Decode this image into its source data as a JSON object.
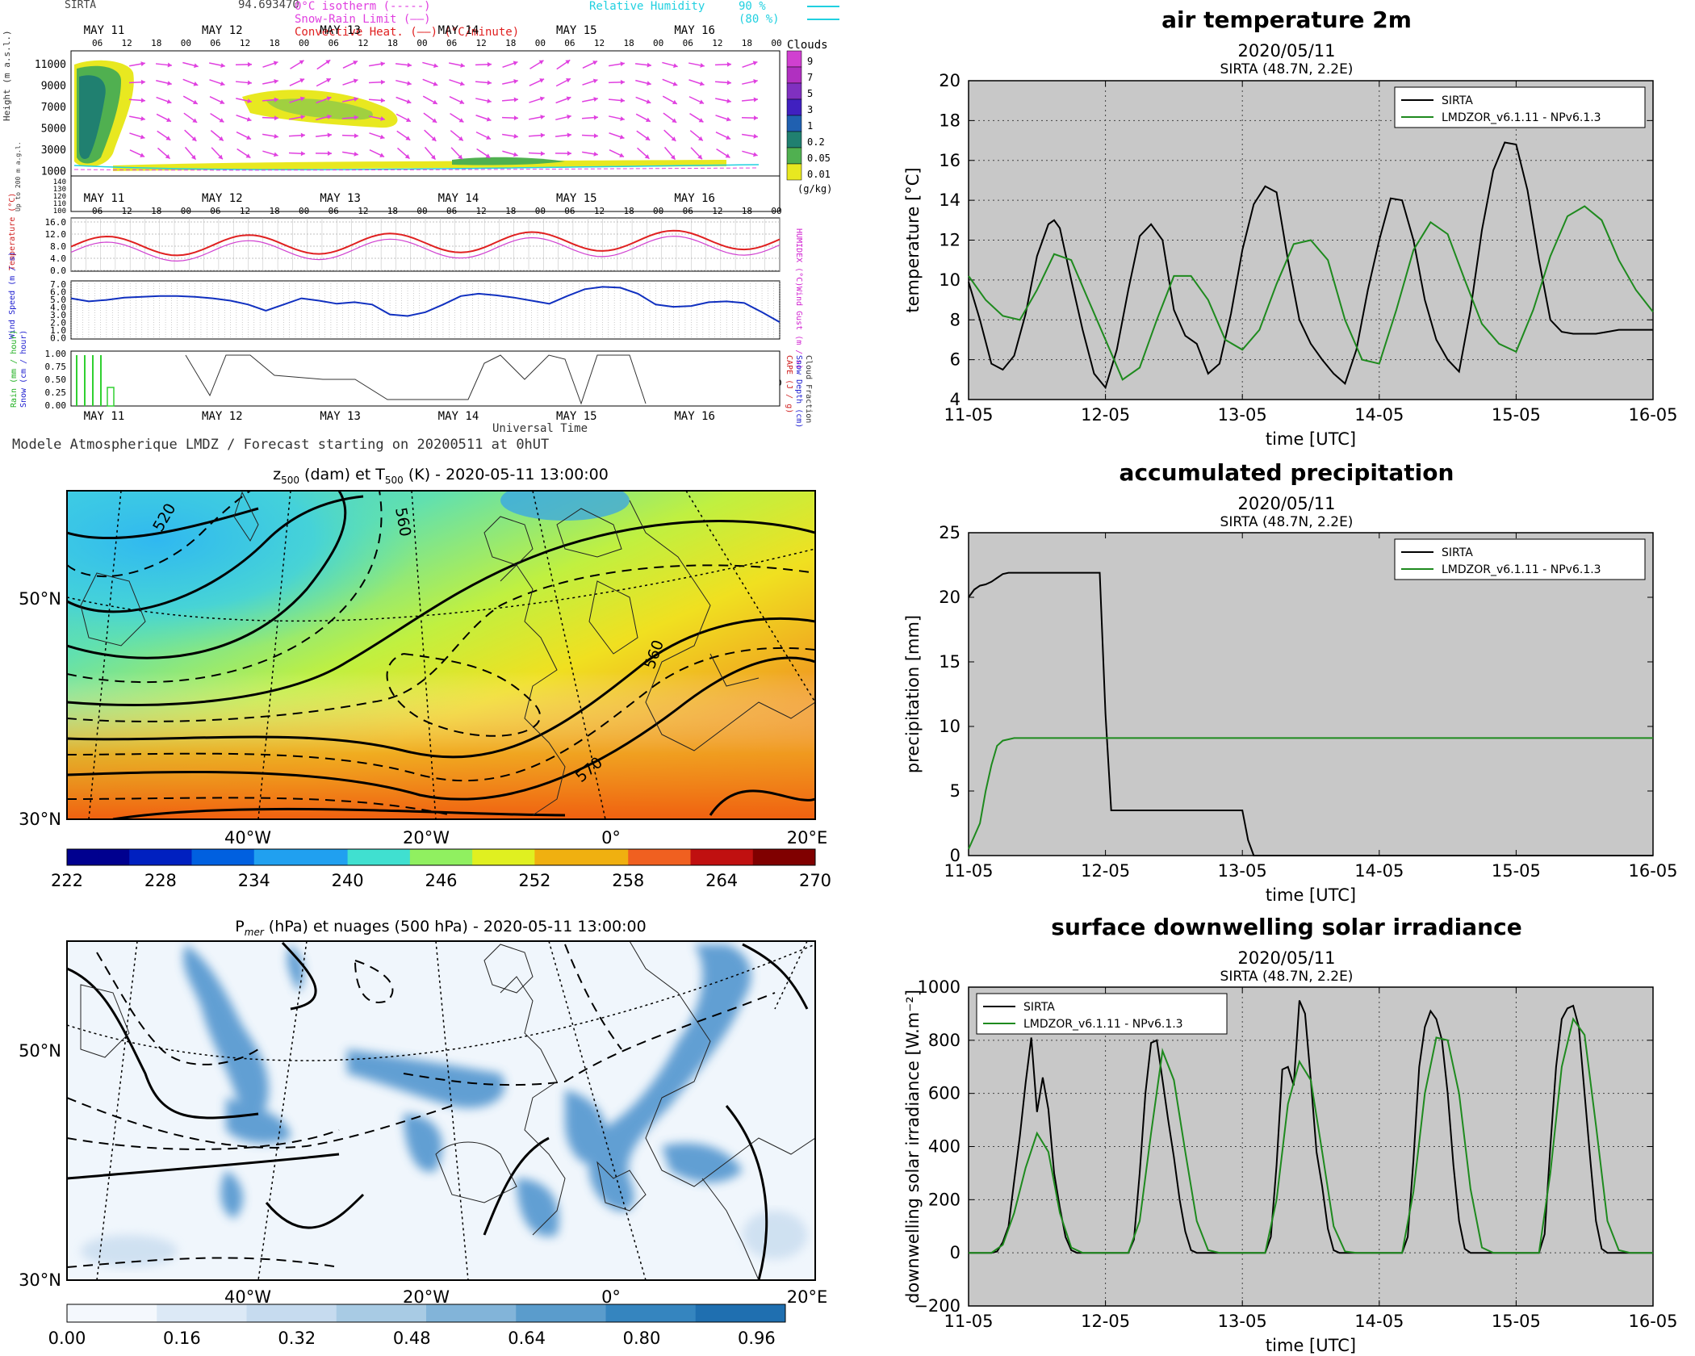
{
  "meteogram": {
    "station": "SIRTA",
    "value_text": "94.693470",
    "legend_left": [
      {
        "label": "0°C isotherm",
        "sym": "(-----)",
        "color": "#e040e0"
      },
      {
        "label": "Snow-Rain Limit",
        "sym": "(——)",
        "color": "#e040e0"
      },
      {
        "label": "Convective Heat.",
        "sym": "(——) (°C/minute)",
        "color": "#e02020"
      }
    ],
    "legend_right": [
      {
        "label": "Relative Humidity",
        "value": "90 %",
        "color": "#20d0e0"
      },
      {
        "label": "",
        "value": "(80 %)",
        "color": "#20d0e0"
      }
    ],
    "days": [
      "MAY 11",
      "MAY 12",
      "MAY 13",
      "MAY 14",
      "MAY 15",
      "MAY 16"
    ],
    "hours": [
      "06",
      "12",
      "18",
      "00"
    ],
    "height_axis": [
      "11000",
      "9000",
      "7000",
      "5000",
      "3000",
      "1000"
    ],
    "low_axis": [
      "140",
      "130",
      "120",
      "110",
      "100"
    ],
    "height_label": "Height (m a.s.l.)",
    "low_label": "Up to 200 m a.g.l.",
    "cloud_title": "Clouds",
    "cloud_levels": [
      "9",
      "7",
      "5",
      "3",
      "1",
      "0.2",
      "0.05",
      "0.01"
    ],
    "cloud_unit": "(g/kg)",
    "cloud_colors": [
      "#d040d0",
      "#b030c0",
      "#8030c0",
      "#4020c0",
      "#2060b0",
      "#208070",
      "#50b050",
      "#e8e820"
    ],
    "temp_axis": [
      "16.0",
      "12.0",
      "8.0",
      "4.0",
      "0.0"
    ],
    "temp_label_left": "Temperature (°C)",
    "temp_label_right": "HUMIDEX (°C)",
    "wind_axis": [
      "7.0",
      "6.0",
      "5.0",
      "4.0",
      "3.0",
      "2.0",
      "1.0",
      "0.0"
    ],
    "wind_label_left": "Wind Speed (m / s)",
    "wind_label_right": "Wind Gust (m / s)",
    "precip_axis": [
      "1.00",
      "0.75",
      "0.50",
      "0.25",
      "0.00"
    ],
    "precip_label_left": [
      "Rain (mm / hour)",
      "Snow (cm / hour)"
    ],
    "precip_label_right": [
      "CAPE (J / g)",
      "Snow Depth (cm)",
      "Cloud Fraction"
    ],
    "xlabel": "Universal Time",
    "footer": "Modele Atmospherique LMDZ / Forecast starting on 20200511 at 0hUT"
  },
  "map1": {
    "title_main": "z",
    "title_sub1": "500",
    "title_mid": " (dam) et T",
    "title_sub2": "500",
    "title_end": " (K) - 2020-05-11 13:00:00",
    "lat_labels": [
      "50°N",
      "30°N"
    ],
    "lon_labels": [
      "40°W",
      "20°W",
      "0°",
      "20°E"
    ],
    "contour_labels": [
      "520",
      "560",
      "560",
      "570"
    ],
    "colorbar_ticks": [
      "222",
      "228",
      "234",
      "240",
      "246",
      "252",
      "258",
      "264",
      "270"
    ],
    "colorbar_colors": [
      "#00008f",
      "#0020c0",
      "#0060e0",
      "#20a0f0",
      "#40e0d0",
      "#90f060",
      "#e0f020",
      "#f0b010",
      "#f06020",
      "#c01010",
      "#800000"
    ]
  },
  "map2": {
    "title_main": "P",
    "title_sub": "mer",
    "title_end": " (hPa) et nuages (500 hPa) - 2020-05-11 13:00:00",
    "lat_labels": [
      "50°N",
      "30°N"
    ],
    "lon_labels": [
      "40°W",
      "20°W",
      "0°",
      "20°E"
    ],
    "colorbar_ticks": [
      "0.00",
      "0.16",
      "0.32",
      "0.48",
      "0.64",
      "0.80",
      "0.96"
    ],
    "colorbar_colors": [
      "#f4f8fd",
      "#dce9f6",
      "#c6dbef",
      "#a8cbe4",
      "#82b4d9",
      "#5a9ccc",
      "#3585bf",
      "#1f6fb0"
    ]
  },
  "chart_data": [
    {
      "type": "line",
      "title": "air temperature 2m",
      "subtitle": "2020/05/11",
      "subtitle2": "SIRTA (48.7N, 2.2E)",
      "xlabel": "time [UTC]",
      "ylabel": "temperature [°C]",
      "xlim": [
        0,
        120
      ],
      "ylim": [
        4,
        20
      ],
      "yticks": [
        "20",
        "18",
        "16",
        "14",
        "12",
        "10",
        "8",
        "6",
        "4"
      ],
      "xticks": [
        "11-05",
        "12-05",
        "13-05",
        "14-05",
        "15-05",
        "16-05"
      ],
      "grid": true,
      "legend": "top-right",
      "series": [
        {
          "name": "SIRTA",
          "color": "#000000",
          "x": [
            0,
            2,
            4,
            6,
            8,
            10,
            12,
            14,
            15,
            16,
            18,
            20,
            22,
            24,
            26,
            28,
            30,
            32,
            34,
            36,
            38,
            40,
            42,
            44,
            46,
            48,
            50,
            52,
            54,
            56,
            58,
            60,
            62,
            64,
            66,
            68,
            70,
            72,
            74,
            76,
            78,
            80,
            82,
            84,
            86,
            88,
            90,
            92,
            94,
            96,
            98,
            100,
            102,
            104,
            106,
            108,
            110,
            112,
            114,
            116,
            118,
            120
          ],
          "y": [
            9.9,
            8.0,
            5.8,
            5.5,
            6.2,
            8.3,
            11.2,
            12.8,
            13.0,
            12.6,
            10.0,
            7.5,
            5.3,
            4.6,
            6.5,
            9.5,
            12.2,
            12.8,
            12.0,
            8.5,
            7.2,
            6.8,
            5.3,
            5.8,
            8.3,
            11.5,
            13.8,
            14.7,
            14.4,
            11.0,
            8.0,
            6.8,
            6.0,
            5.3,
            4.8,
            6.5,
            9.5,
            12.0,
            14.1,
            14.0,
            12.0,
            9.0,
            7.0,
            6.0,
            5.4,
            8.5,
            12.5,
            15.5,
            16.9,
            16.8,
            14.5,
            11.0,
            8.0,
            7.4,
            7.3,
            7.3,
            7.3,
            7.4,
            7.5,
            7.5,
            7.5,
            7.5
          ]
        },
        {
          "name": "LMDZOR_v6.1.11 - NPv6.1.3",
          "color": "#1e8a1e",
          "x": [
            0,
            3,
            6,
            9,
            12,
            15,
            18,
            21,
            24,
            27,
            30,
            33,
            36,
            39,
            42,
            45,
            48,
            51,
            54,
            57,
            60,
            63,
            66,
            69,
            72,
            75,
            78,
            81,
            84,
            87,
            90,
            93,
            96,
            99,
            102,
            105,
            108,
            111,
            114,
            117,
            120
          ],
          "y": [
            10.2,
            9.0,
            8.2,
            8.0,
            9.5,
            11.3,
            11.0,
            9.0,
            7.0,
            5.0,
            5.6,
            8.0,
            10.2,
            10.2,
            9.0,
            7.0,
            6.5,
            7.5,
            9.8,
            11.8,
            12.0,
            11.0,
            8.0,
            6.0,
            5.8,
            8.5,
            11.5,
            12.9,
            12.3,
            10.0,
            7.8,
            6.8,
            6.4,
            8.5,
            11.2,
            13.2,
            13.7,
            13.0,
            11.0,
            9.5,
            8.4
          ]
        }
      ]
    },
    {
      "type": "line",
      "title": "accumulated precipitation",
      "subtitle": "2020/05/11",
      "subtitle2": "SIRTA (48.7N, 2.2E)",
      "xlabel": "time [UTC]",
      "ylabel": "precipitation [mm]",
      "xlim": [
        0,
        120
      ],
      "ylim": [
        0,
        25
      ],
      "yticks": [
        "25",
        "20",
        "15",
        "10",
        "5",
        "0"
      ],
      "xticks": [
        "11-05",
        "12-05",
        "13-05",
        "14-05",
        "15-05",
        "16-05"
      ],
      "grid": false,
      "legend": "top-right",
      "series": [
        {
          "name": "SIRTA",
          "color": "#000000",
          "x": [
            0,
            1,
            2,
            3,
            4,
            5,
            6,
            7,
            8,
            10,
            12,
            14,
            18,
            22,
            23,
            24,
            25,
            26,
            28,
            30,
            40,
            46,
            48,
            49,
            50,
            120
          ],
          "y": [
            20.0,
            20.6,
            20.9,
            21.0,
            21.2,
            21.5,
            21.8,
            21.9,
            21.9,
            21.9,
            21.9,
            21.9,
            21.9,
            21.9,
            21.9,
            11.0,
            3.5,
            3.5,
            3.5,
            3.5,
            3.5,
            3.5,
            3.5,
            1.2,
            0.0,
            0.0
          ]
        },
        {
          "name": "LMDZOR_v6.1.11 - NPv6.1.3",
          "color": "#1e8a1e",
          "x": [
            0,
            1,
            2,
            3,
            4,
            5,
            6,
            7,
            8,
            120
          ],
          "y": [
            0.5,
            1.5,
            2.5,
            5.0,
            7.0,
            8.5,
            8.9,
            9.0,
            9.1,
            9.1
          ]
        }
      ]
    },
    {
      "type": "line",
      "title": "surface downwelling solar irradiance",
      "subtitle": "2020/05/11",
      "subtitle2": "SIRTA (48.7N, 2.2E)",
      "xlabel": "time [UTC]",
      "ylabel": "downwelling solar irradiance [W.m⁻²]",
      "xlim": [
        0,
        120
      ],
      "ylim": [
        -200,
        1000
      ],
      "yticks": [
        "1000",
        "800",
        "600",
        "400",
        "200",
        "0",
        "−200"
      ],
      "xticks": [
        "11-05",
        "12-05",
        "13-05",
        "14-05",
        "15-05",
        "16-05"
      ],
      "grid": true,
      "legend": "top-left",
      "series": [
        {
          "name": "SIRTA",
          "color": "#000000",
          "x": [
            0,
            4,
            5,
            6,
            7,
            8,
            9,
            10,
            11,
            12,
            13,
            14,
            15,
            16,
            17,
            18,
            19,
            20,
            24,
            28,
            29,
            30,
            31,
            32,
            33,
            34,
            35,
            36,
            37,
            38,
            39,
            40,
            41,
            42,
            44,
            48,
            52,
            53,
            54,
            55,
            56,
            57,
            58,
            59,
            60,
            61,
            62,
            63,
            64,
            65,
            66,
            68,
            72,
            76,
            77,
            78,
            79,
            80,
            81,
            82,
            83,
            84,
            85,
            86,
            87,
            88,
            89,
            90,
            92,
            96,
            100,
            101,
            102,
            103,
            104,
            105,
            106,
            107,
            108,
            109,
            110,
            111,
            112,
            113,
            114,
            116,
            120
          ],
          "y": [
            0,
            0,
            5,
            40,
            100,
            270,
            440,
            640,
            810,
            530,
            660,
            540,
            300,
            170,
            60,
            10,
            0,
            0,
            0,
            0,
            50,
            300,
            600,
            790,
            800,
            650,
            500,
            360,
            200,
            80,
            10,
            0,
            0,
            0,
            0,
            0,
            0,
            60,
            330,
            690,
            700,
            630,
            950,
            900,
            650,
            380,
            250,
            90,
            10,
            0,
            0,
            0,
            0,
            0,
            60,
            350,
            700,
            850,
            910,
            880,
            800,
            600,
            330,
            120,
            15,
            0,
            0,
            0,
            0,
            0,
            0,
            70,
            400,
            700,
            880,
            920,
            930,
            850,
            600,
            350,
            120,
            15,
            0,
            0,
            0,
            0,
            0
          ]
        },
        {
          "name": "LMDZOR_v6.1.11 - NPv6.1.3",
          "color": "#1e8a1e",
          "x": [
            0,
            4,
            6,
            8,
            10,
            12,
            14,
            16,
            18,
            20,
            24,
            28,
            30,
            32,
            34,
            36,
            38,
            40,
            42,
            44,
            48,
            52,
            54,
            56,
            58,
            60,
            62,
            64,
            66,
            68,
            72,
            76,
            78,
            80,
            82,
            84,
            86,
            88,
            90,
            92,
            96,
            100,
            102,
            104,
            106,
            108,
            110,
            112,
            114,
            116,
            120
          ],
          "y": [
            0,
            0,
            30,
            150,
            320,
            450,
            380,
            150,
            20,
            0,
            0,
            0,
            120,
            450,
            760,
            650,
            380,
            120,
            10,
            0,
            0,
            0,
            200,
            560,
            720,
            650,
            380,
            100,
            5,
            0,
            0,
            0,
            230,
            600,
            810,
            800,
            600,
            240,
            20,
            0,
            0,
            0,
            300,
            700,
            880,
            820,
            480,
            120,
            10,
            0,
            0
          ]
        }
      ]
    }
  ]
}
